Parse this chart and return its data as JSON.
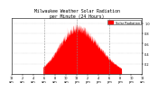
{
  "title": "Milwaukee Weather Solar Radiation\nper Minute (24 Hours)",
  "bar_color": "#ff0000",
  "background_color": "#ffffff",
  "plot_bg_color": "#ffffff",
  "grid_color": "#888888",
  "num_points": 1440,
  "peak_hour": 12.0,
  "legend_label": "Solar Radiation",
  "legend_color": "#ff0000",
  "xlim": [
    0,
    24
  ],
  "vgrid_hours": [
    6,
    12,
    18
  ],
  "ylim": [
    0,
    1.1
  ],
  "title_fontsize": 3.5,
  "tick_fontsize": 2.5,
  "legend_fontsize": 2.5
}
